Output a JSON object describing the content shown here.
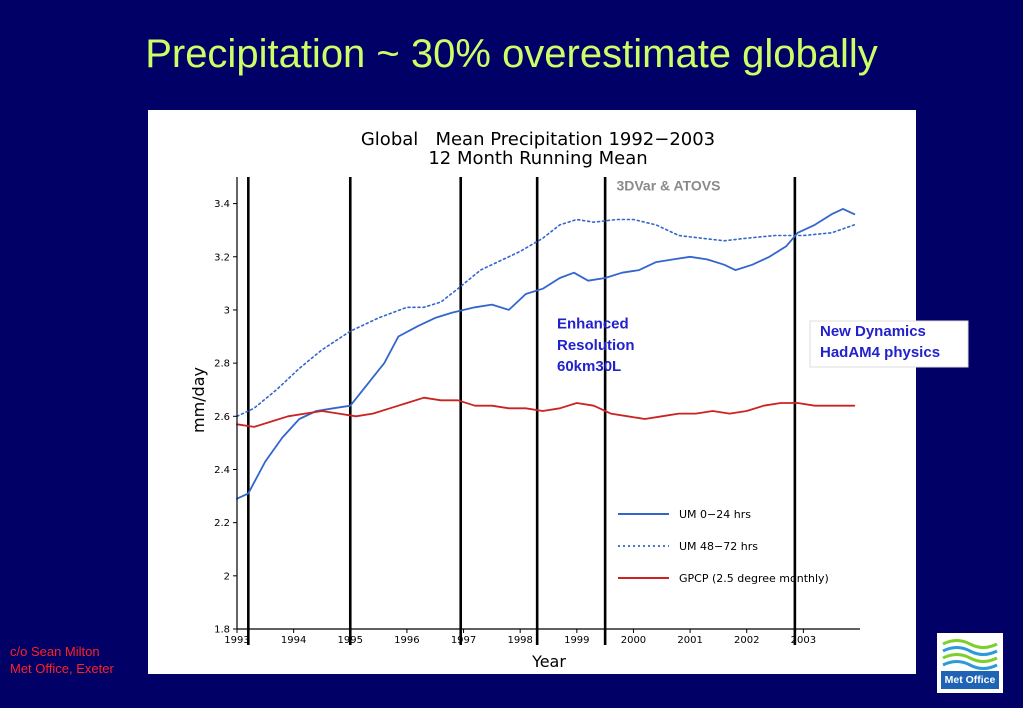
{
  "slide": {
    "title": "Precipitation ~ 30% overestimate globally",
    "credit_line1": "c/o Sean Milton",
    "credit_line2": "Met Office, Exeter",
    "logo_text": "Met Office"
  },
  "colors": {
    "background": "#000066",
    "title": "#ccff66",
    "credit": "#ff2222",
    "um_series": "#3366cc",
    "gpcp_series": "#cc2222",
    "annotation": "#2222cc"
  },
  "chart_data": {
    "type": "line",
    "title_line1": "Global   Mean Precipitation 1992−2003",
    "title_line2": "12 Month Running Mean",
    "xlabel": "Year",
    "ylabel": "mm/day",
    "xlim": [
      1993.0,
      2004.0
    ],
    "ylim": [
      1.8,
      3.5
    ],
    "x_tick_labels": [
      "1993",
      "1994",
      "1995",
      "1996",
      "1997",
      "1998",
      "1999",
      "2000",
      "2001",
      "2002",
      "2003"
    ],
    "y_ticks": [
      1.8,
      2,
      2.2,
      2.4,
      2.6,
      2.8,
      3,
      3.2,
      3.4
    ],
    "y_tick_labels": [
      "1.8",
      "2",
      "2.2",
      "2.4",
      "2.6",
      "2.8",
      "3",
      "3.2",
      "3.4"
    ],
    "vlines": [
      1993.2,
      1995.0,
      1996.95,
      1998.3,
      1999.5,
      2002.85
    ],
    "annotations": [
      {
        "text": "3DVar & ATOVS",
        "x": 1999.7,
        "y": 3.45,
        "style": "gray"
      },
      {
        "text": "Enhanced",
        "x": 1998.65,
        "y": 2.93,
        "style": "blue"
      },
      {
        "text": "Resolution",
        "x": 1998.65,
        "y": 2.85,
        "style": "blue"
      },
      {
        "text": "60km30L",
        "x": 1998.65,
        "y": 2.77,
        "style": "blue"
      }
    ],
    "box_note_line1": "New Dynamics",
    "box_note_line2": "HadAM4 physics",
    "legend_position": "bottom-right",
    "series": [
      {
        "name": "UM 0−24 hrs",
        "style": "solid",
        "x": [
          1993.0,
          1993.2,
          1993.5,
          1993.8,
          1994.1,
          1994.4,
          1994.7,
          1995.0,
          1995.3,
          1995.6,
          1995.85,
          1996.2,
          1996.5,
          1996.8,
          1997.2,
          1997.5,
          1997.8,
          1998.1,
          1998.4,
          1998.7,
          1998.95,
          1999.2,
          1999.5,
          1999.8,
          2000.1,
          2000.4,
          2000.7,
          2001.0,
          2001.3,
          2001.6,
          2001.8,
          2002.1,
          2002.4,
          2002.7,
          2002.9,
          2003.2,
          2003.5,
          2003.7,
          2003.9
        ],
        "y": [
          2.29,
          2.31,
          2.43,
          2.52,
          2.59,
          2.62,
          2.63,
          2.64,
          2.72,
          2.8,
          2.9,
          2.94,
          2.97,
          2.99,
          3.01,
          3.02,
          3.0,
          3.06,
          3.08,
          3.12,
          3.14,
          3.11,
          3.12,
          3.14,
          3.15,
          3.18,
          3.19,
          3.2,
          3.19,
          3.17,
          3.15,
          3.17,
          3.2,
          3.24,
          3.29,
          3.32,
          3.36,
          3.38,
          3.36
        ]
      },
      {
        "name": "UM 48−72 hrs",
        "style": "dotted",
        "x": [
          1993.0,
          1993.3,
          1993.7,
          1994.1,
          1994.5,
          1995.0,
          1995.5,
          1996.0,
          1996.3,
          1996.6,
          1996.9,
          1997.3,
          1997.7,
          1998.0,
          1998.4,
          1998.7,
          1999.0,
          1999.3,
          1999.7,
          2000.0,
          2000.4,
          2000.8,
          2001.2,
          2001.6,
          2002.0,
          2002.5,
          2003.0,
          2003.5,
          2003.9
        ],
        "y": [
          2.6,
          2.63,
          2.7,
          2.78,
          2.85,
          2.92,
          2.97,
          3.01,
          3.01,
          3.03,
          3.08,
          3.15,
          3.19,
          3.22,
          3.27,
          3.32,
          3.34,
          3.33,
          3.34,
          3.34,
          3.32,
          3.28,
          3.27,
          3.26,
          3.27,
          3.28,
          3.28,
          3.29,
          3.32
        ]
      },
      {
        "name": "GPCP (2.5 degree monthly)",
        "style": "solid",
        "x": [
          1993.0,
          1993.3,
          1993.6,
          1993.9,
          1994.2,
          1994.5,
          1994.8,
          1995.1,
          1995.4,
          1995.7,
          1996.0,
          1996.3,
          1996.6,
          1996.9,
          1997.2,
          1997.5,
          1997.8,
          1998.1,
          1998.4,
          1998.7,
          1999.0,
          1999.3,
          1999.6,
          1999.9,
          2000.2,
          2000.5,
          2000.8,
          2001.1,
          2001.4,
          2001.7,
          2002.0,
          2002.3,
          2002.6,
          2002.9,
          2003.2,
          2003.5,
          2003.9
        ],
        "y": [
          2.57,
          2.56,
          2.58,
          2.6,
          2.61,
          2.62,
          2.61,
          2.6,
          2.61,
          2.63,
          2.65,
          2.67,
          2.66,
          2.66,
          2.64,
          2.64,
          2.63,
          2.63,
          2.62,
          2.63,
          2.65,
          2.64,
          2.61,
          2.6,
          2.59,
          2.6,
          2.61,
          2.61,
          2.62,
          2.61,
          2.62,
          2.64,
          2.65,
          2.65,
          2.64,
          2.64,
          2.64
        ]
      }
    ]
  }
}
